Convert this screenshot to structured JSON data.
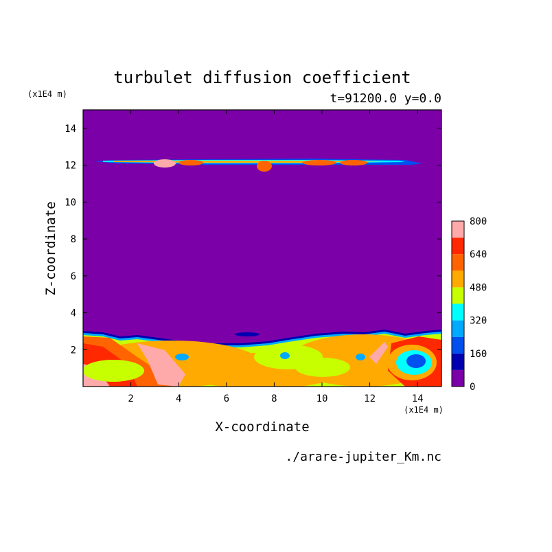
{
  "chart_data": {
    "type": "heatmap",
    "title": "turbulet diffusion coefficient",
    "subtitle": "t=91200.0 y=0.0",
    "xlabel": "X-coordinate",
    "ylabel": "Z-coordinate",
    "x_unit": "(x1E4 m)",
    "y_unit": "(x1E4 m)",
    "source_file": "./arare-jupiter_Km.nc",
    "xlim": [
      0,
      15
    ],
    "ylim": [
      0,
      15
    ],
    "x_ticks": [
      "2",
      "4",
      "6",
      "8",
      "10",
      "12",
      "14"
    ],
    "y_ticks": [
      "2",
      "4",
      "6",
      "8",
      "10",
      "12",
      "14"
    ],
    "x_tick_values": [
      2,
      4,
      6,
      8,
      10,
      12,
      14
    ],
    "y_tick_values": [
      2,
      4,
      6,
      8,
      10,
      12,
      14
    ],
    "colorbar": {
      "levels": [
        0,
        80,
        160,
        240,
        320,
        400,
        480,
        560,
        640,
        720,
        800
      ],
      "labels": [
        "0",
        "160",
        "320",
        "480",
        "640",
        "800"
      ],
      "label_values": [
        0,
        160,
        320,
        480,
        640,
        800
      ],
      "colors": [
        "#7b00a8",
        "#0000b0",
        "#0050f0",
        "#00aaff",
        "#00ffff",
        "#c8ff00",
        "#ffaa00",
        "#ff6400",
        "#ff2800",
        "#ffaaaa"
      ]
    },
    "background_color": "#7b00a8"
  }
}
